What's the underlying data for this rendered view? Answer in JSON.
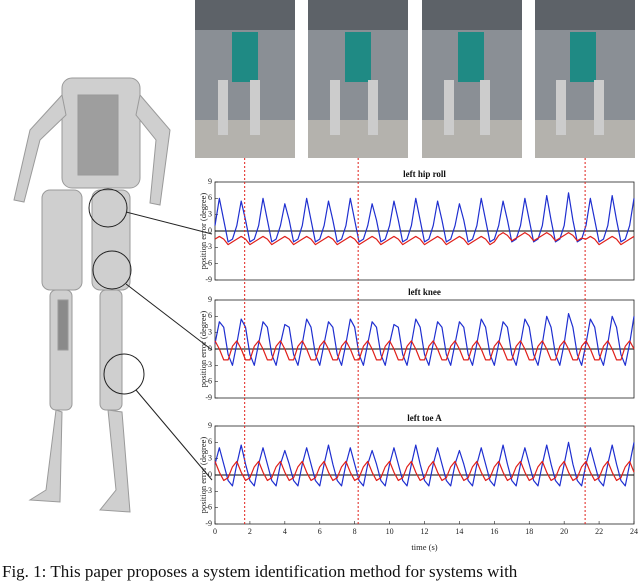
{
  "chart_data": [
    {
      "type": "line",
      "title": "left hip roll",
      "ylabel": "position error (degree)",
      "xlim": [
        0,
        24
      ],
      "ylim": [
        -9,
        9
      ],
      "yticks": [
        9,
        6,
        3,
        0,
        -3,
        -6,
        -9
      ],
      "x": [
        0,
        0.25,
        0.5,
        0.75,
        1,
        1.25,
        1.5,
        1.75,
        2,
        2.25,
        2.5,
        2.75,
        3,
        3.25,
        3.5,
        3.75,
        4,
        4.25,
        4.5,
        4.75,
        5,
        5.25,
        5.5,
        5.75,
        6,
        6.25,
        6.5,
        6.75,
        7,
        7.25,
        7.5,
        7.75,
        8,
        8.25,
        8.5,
        8.75,
        9,
        9.25,
        9.5,
        9.75,
        10,
        10.25,
        10.5,
        10.75,
        11,
        11.25,
        11.5,
        11.75,
        12,
        12.25,
        12.5,
        12.75,
        13,
        13.25,
        13.5,
        13.75,
        14,
        14.25,
        14.5,
        14.75,
        15,
        15.25,
        15.5,
        15.75,
        16,
        16.25,
        16.5,
        16.75,
        17,
        17.25,
        17.5,
        17.75,
        18,
        18.25,
        18.5,
        18.75,
        19,
        19.25,
        19.5,
        19.75,
        20,
        20.25,
        20.5,
        20.75,
        21,
        21.25,
        21.5,
        21.75,
        22,
        22.25,
        22.5,
        22.75,
        23,
        23.25,
        23.5,
        23.75,
        24
      ],
      "series": [
        {
          "name": "blue",
          "color": "#1f2fd0",
          "values": [
            1,
            6,
            2,
            -2,
            -1.5,
            1,
            5.5,
            2,
            -2,
            -1.5,
            1,
            6,
            2,
            -2,
            -1.5,
            1,
            5,
            2,
            -2,
            -1.5,
            1,
            6,
            2,
            -2,
            -1.5,
            1,
            5.5,
            2,
            -2,
            -1.5,
            1,
            6,
            2,
            -2,
            -1.5,
            1,
            5,
            2,
            -2,
            -1.5,
            1,
            5.5,
            2,
            -2,
            -1.5,
            1,
            6,
            2,
            -2,
            -1.5,
            1,
            5.5,
            2,
            -2,
            -1.5,
            1,
            5,
            2,
            -2,
            -1.5,
            1,
            6,
            2,
            -2,
            -1.5,
            1,
            5.5,
            2,
            -2,
            -1.5,
            1,
            6,
            2,
            -2,
            -1.5,
            1,
            6.5,
            2,
            -2,
            -1.5,
            1,
            7,
            2,
            -2,
            -1.5,
            1,
            6,
            2,
            -2,
            -1.5,
            1,
            6.5,
            2,
            -2,
            -1.5,
            1,
            6
          ]
        },
        {
          "name": "red",
          "color": "#e0201a",
          "values": [
            -1.5,
            -1,
            -1.5,
            -2.5,
            -2,
            -1.5,
            -1,
            -1.5,
            -2.5,
            -2,
            -1.5,
            -1,
            -1.5,
            -2.5,
            -2,
            -1.5,
            -1,
            -1.5,
            -2.5,
            -2,
            -1.5,
            -1,
            -1.5,
            -2.5,
            -2,
            -1.5,
            -1,
            -1.5,
            -2.5,
            -2,
            -1.5,
            -1,
            -1.5,
            -2.5,
            -2,
            -1.5,
            -1,
            -1.5,
            -2.5,
            -2,
            -1.5,
            -1,
            -1.5,
            -2.5,
            -2,
            -1.5,
            -1,
            -1.5,
            -2.5,
            -2,
            -1.5,
            -1,
            -1.5,
            -2.5,
            -2,
            -1.5,
            -1,
            -1.5,
            -2.5,
            -2,
            -1.5,
            -1,
            -1.5,
            -2.5,
            -2,
            -0.8,
            -0.3,
            -0.8,
            -1.8,
            -1.3,
            -0.8,
            -0.3,
            -0.8,
            -1.8,
            -1.3,
            -0.8,
            -0.3,
            -0.8,
            -1.8,
            -1.3,
            -0.8,
            -0.3,
            -0.8,
            -1.8,
            -1.3,
            -1.5,
            -1,
            -1.5,
            -2.5,
            -2,
            -1.5,
            -1,
            -1.5,
            -2.5,
            -2,
            -1.5,
            -1
          ]
        }
      ]
    },
    {
      "type": "line",
      "title": "left knee",
      "ylabel": "position error (degree)",
      "xlim": [
        0,
        24
      ],
      "ylim": [
        -9,
        9
      ],
      "yticks": [
        9,
        6,
        3,
        0,
        -3,
        -6,
        -9
      ],
      "x": [
        0,
        0.25,
        0.5,
        0.75,
        1,
        1.25,
        1.5,
        1.75,
        2,
        2.25,
        2.5,
        2.75,
        3,
        3.25,
        3.5,
        3.75,
        4,
        4.25,
        4.5,
        4.75,
        5,
        5.25,
        5.5,
        5.75,
        6,
        6.25,
        6.5,
        6.75,
        7,
        7.25,
        7.5,
        7.75,
        8,
        8.25,
        8.5,
        8.75,
        9,
        9.25,
        9.5,
        9.75,
        10,
        10.25,
        10.5,
        10.75,
        11,
        11.25,
        11.5,
        11.75,
        12,
        12.25,
        12.5,
        12.75,
        13,
        13.25,
        13.5,
        13.75,
        14,
        14.25,
        14.5,
        14.75,
        15,
        15.25,
        15.5,
        15.75,
        16,
        16.25,
        16.5,
        16.75,
        17,
        17.25,
        17.5,
        17.75,
        18,
        18.25,
        18.5,
        18.75,
        19,
        19.25,
        19.5,
        19.75,
        20,
        20.25,
        20.5,
        20.75,
        21,
        21.25,
        21.5,
        21.75,
        22,
        22.25,
        22.5,
        22.75,
        23,
        23.25,
        23.5,
        23.75,
        24
      ],
      "series": [
        {
          "name": "blue",
          "color": "#1f2fd0",
          "values": [
            1,
            5,
            4,
            -1,
            -3,
            1,
            5.5,
            4,
            -1,
            -3,
            1,
            5,
            4,
            -1,
            -3,
            1,
            4.5,
            4,
            -1,
            -3,
            1,
            5.5,
            4,
            -1,
            -3,
            1,
            5,
            4,
            -1,
            -3,
            1,
            5.5,
            4,
            -1,
            -3,
            1,
            5,
            4,
            -1,
            -3,
            1,
            4.5,
            4,
            -1,
            -3,
            1,
            5.5,
            4,
            -1,
            -3,
            1,
            5,
            4,
            -1,
            -3,
            1,
            5,
            4,
            -1,
            -3,
            1,
            5.5,
            4,
            -1,
            -3,
            1,
            5,
            4,
            -1,
            -3,
            1,
            5.5,
            4,
            -1,
            -3,
            1,
            6,
            4,
            -1,
            -3,
            1,
            6.5,
            4,
            -1,
            -3,
            1,
            5.5,
            4,
            -1,
            -3,
            1,
            6,
            4,
            -1,
            -3,
            1,
            6
          ]
        },
        {
          "name": "red",
          "color": "#e0201a",
          "values": [
            1.5,
            0,
            -2,
            -2,
            0.5,
            1.5,
            0,
            -2,
            -2,
            0.5,
            1.5,
            0,
            -2,
            -2,
            0.5,
            1.5,
            0,
            -2,
            -2,
            0.5,
            1.5,
            0,
            -2,
            -2,
            0.5,
            1.5,
            0,
            -2,
            -2,
            0.5,
            1.5,
            0,
            -2,
            -2,
            0.5,
            1.5,
            0,
            -2,
            -2,
            0.5,
            1.5,
            0,
            -2,
            -2,
            0.5,
            1.5,
            0,
            -2,
            -2,
            0.5,
            1.5,
            0,
            -2,
            -2,
            0.5,
            1.5,
            0,
            -2,
            -2,
            0.5,
            1.5,
            0,
            -2,
            -2,
            0.5,
            1.5,
            0,
            -2,
            -2,
            0.5,
            1.5,
            0,
            -2,
            -2,
            0.5,
            1.5,
            0,
            -2,
            -2,
            0.5,
            1.5,
            0,
            -2,
            -2,
            0.5,
            1.5,
            0,
            -2,
            -2,
            0.5,
            1.5,
            0,
            -2,
            -2,
            0.5,
            1.5,
            0
          ]
        }
      ]
    },
    {
      "type": "line",
      "title": "left toe A",
      "ylabel": "position error (degree)",
      "xlabel": "time (s)",
      "xlim": [
        0,
        24
      ],
      "ylim": [
        -9,
        9
      ],
      "yticks": [
        9,
        6,
        3,
        0,
        -3,
        -6,
        -9
      ],
      "xticks": [
        0,
        2,
        4,
        6,
        8,
        10,
        12,
        14,
        16,
        18,
        20,
        22,
        24
      ],
      "x": [
        0,
        0.25,
        0.5,
        0.75,
        1,
        1.25,
        1.5,
        1.75,
        2,
        2.25,
        2.5,
        2.75,
        3,
        3.25,
        3.5,
        3.75,
        4,
        4.25,
        4.5,
        4.75,
        5,
        5.25,
        5.5,
        5.75,
        6,
        6.25,
        6.5,
        6.75,
        7,
        7.25,
        7.5,
        7.75,
        8,
        8.25,
        8.5,
        8.75,
        9,
        9.25,
        9.5,
        9.75,
        10,
        10.25,
        10.5,
        10.75,
        11,
        11.25,
        11.5,
        11.75,
        12,
        12.25,
        12.5,
        12.75,
        13,
        13.25,
        13.5,
        13.75,
        14,
        14.25,
        14.5,
        14.75,
        15,
        15.25,
        15.5,
        15.75,
        16,
        16.25,
        16.5,
        16.75,
        17,
        17.25,
        17.5,
        17.75,
        18,
        18.25,
        18.5,
        18.75,
        19,
        19.25,
        19.5,
        19.75,
        20,
        20.25,
        20.5,
        20.75,
        21,
        21.25,
        21.5,
        21.75,
        22,
        22.25,
        22.5,
        22.75,
        23,
        23.25,
        23.5,
        23.75,
        24
      ],
      "series": [
        {
          "name": "blue",
          "color": "#1f2fd0",
          "values": [
            2,
            5,
            2,
            -1,
            -2,
            2,
            5.5,
            2,
            -1,
            -2,
            2,
            5,
            2,
            -1,
            -2,
            2,
            4.5,
            2,
            -1,
            -2,
            2,
            5,
            2,
            -1,
            -2,
            2,
            5.5,
            2,
            -1,
            -2,
            2,
            5,
            2,
            -1,
            -2,
            2,
            4.5,
            2,
            -1,
            -2,
            2,
            5,
            2,
            -1,
            -2,
            2,
            5.5,
            2,
            -1,
            -2,
            2,
            5,
            2,
            -1,
            -2,
            2,
            4.5,
            2,
            -1,
            -2,
            2,
            5,
            2,
            -1,
            -2,
            2,
            5.5,
            2,
            -1,
            -2,
            2,
            5,
            2,
            -1,
            -2,
            2,
            5.5,
            2,
            -1,
            -2,
            2,
            6,
            2,
            -1,
            -2,
            2,
            5,
            2,
            -1,
            -2,
            2,
            5.5,
            2,
            -1,
            -2,
            2,
            6
          ]
        },
        {
          "name": "red",
          "color": "#e0201a",
          "values": [
            2.5,
            0.5,
            -1,
            -0.5,
            1.5,
            2.5,
            0.5,
            -1,
            -0.5,
            1.5,
            2.5,
            0.5,
            -1,
            -0.5,
            1.5,
            2.5,
            0.5,
            -1,
            -0.5,
            1.5,
            2.5,
            0.5,
            -1,
            -0.5,
            1.5,
            2.5,
            0.5,
            -1,
            -0.5,
            1.5,
            2.5,
            0.5,
            -1,
            -0.5,
            1.5,
            2.5,
            0.5,
            -1,
            -0.5,
            1.5,
            2.5,
            0.5,
            -1,
            -0.5,
            1.5,
            2.5,
            0.5,
            -1,
            -0.5,
            1.5,
            2.5,
            0.5,
            -1,
            -0.5,
            1.5,
            2.5,
            0.5,
            -1,
            -0.5,
            1.5,
            2.5,
            0.5,
            -1,
            -0.5,
            1.5,
            2.5,
            0.5,
            -1,
            -0.5,
            1.5,
            2.5,
            0.5,
            -1,
            -0.5,
            1.5,
            2.5,
            0.5,
            -1,
            -0.5,
            1.5,
            2.5,
            0.5,
            -1,
            -0.5,
            1.5,
            2.5,
            0.5,
            -1,
            -0.5,
            1.5,
            2.5,
            0.5,
            -1,
            -0.5,
            1.5,
            2.5,
            0.5
          ]
        }
      ]
    }
  ],
  "markers": [
    1.7,
    8.2,
    21.2
  ],
  "caption": "Fig. 1: This paper proposes a system identification method for systems with"
}
